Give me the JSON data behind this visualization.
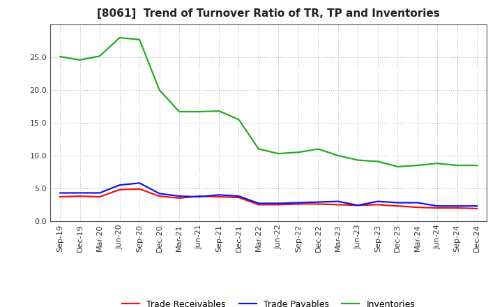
{
  "title": "[8061]  Trend of Turnover Ratio of TR, TP and Inventories",
  "x_labels": [
    "Sep-19",
    "Dec-19",
    "Mar-20",
    "Jun-20",
    "Sep-20",
    "Dec-20",
    "Mar-21",
    "Jun-21",
    "Sep-21",
    "Dec-21",
    "Mar-22",
    "Jun-22",
    "Sep-22",
    "Dec-22",
    "Mar-23",
    "Jun-23",
    "Sep-23",
    "Dec-23",
    "Mar-24",
    "Jun-24",
    "Sep-24",
    "Dec-24"
  ],
  "trade_receivables": [
    3.7,
    3.8,
    3.7,
    4.8,
    4.9,
    3.8,
    3.5,
    3.8,
    3.7,
    3.6,
    2.5,
    2.5,
    2.6,
    2.6,
    2.5,
    2.4,
    2.5,
    2.3,
    2.1,
    2.0,
    2.0,
    1.9
  ],
  "trade_payables": [
    4.3,
    4.3,
    4.3,
    5.5,
    5.8,
    4.2,
    3.8,
    3.7,
    4.0,
    3.8,
    2.7,
    2.7,
    2.8,
    2.9,
    3.0,
    2.4,
    3.0,
    2.8,
    2.8,
    2.3,
    2.3,
    2.3
  ],
  "inventories": [
    25.1,
    24.6,
    25.2,
    28.0,
    27.7,
    20.0,
    16.7,
    16.7,
    16.8,
    15.5,
    11.0,
    10.3,
    10.5,
    11.0,
    10.0,
    9.3,
    9.1,
    8.3,
    8.5,
    8.8,
    8.5,
    8.5
  ],
  "ylim": [
    0,
    30
  ],
  "yticks": [
    0.0,
    5.0,
    10.0,
    15.0,
    20.0,
    25.0
  ],
  "colors": {
    "trade_receivables": "#ee1111",
    "trade_payables": "#1111ee",
    "inventories": "#22aa22"
  },
  "legend_labels": [
    "Trade Receivables",
    "Trade Payables",
    "Inventories"
  ],
  "background_color": "#ffffff",
  "plot_bg_color": "#ffffff",
  "grid_color": "#888888",
  "linewidth": 1.6,
  "title_fontsize": 11,
  "tick_fontsize": 8,
  "legend_fontsize": 9
}
